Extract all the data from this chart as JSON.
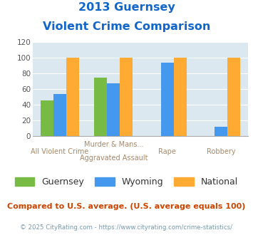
{
  "title_line1": "2013 Guernsey",
  "title_line2": "Violent Crime Comparison",
  "cat_labels_line1": [
    "",
    "Murder & Mans...",
    "",
    ""
  ],
  "cat_labels_line2": [
    "All Violent Crime",
    "Aggravated Assault",
    "Rape",
    "Robbery"
  ],
  "guernsey": [
    46,
    75,
    null,
    null
  ],
  "wyoming": [
    54,
    68,
    94,
    12
  ],
  "national": [
    100,
    100,
    100,
    100
  ],
  "guernsey_color": "#77bb44",
  "wyoming_color": "#4499ee",
  "national_color": "#ffaa33",
  "ylim": [
    0,
    120
  ],
  "yticks": [
    0,
    20,
    40,
    60,
    80,
    100,
    120
  ],
  "bg_color": "#dce8f0",
  "title_color": "#1166cc",
  "xlabel_color": "#aa8866",
  "legend_label_color": "#333333",
  "footer_text": "Compared to U.S. average. (U.S. average equals 100)",
  "footer_color": "#cc4400",
  "credit_text": "© 2025 CityRating.com - https://www.cityrating.com/crime-statistics/",
  "credit_color": "#7799aa"
}
